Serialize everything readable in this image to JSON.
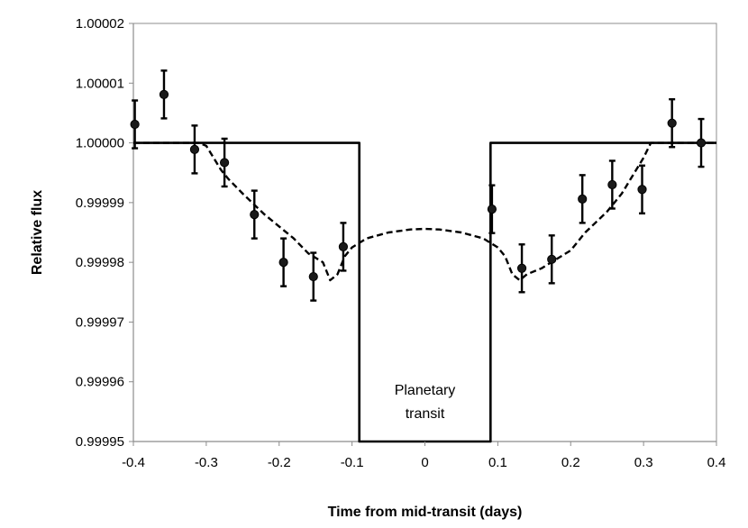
{
  "chart_data": {
    "type": "scatter",
    "title": "",
    "xlabel": "Time from mid-transit (days)",
    "ylabel": "Relative flux",
    "xlim": [
      -0.4,
      0.4
    ],
    "ylim": [
      0.99995,
      1.00002
    ],
    "x_ticks": [
      "-0.4",
      "-0.3",
      "-0.2",
      "-0.1",
      "0",
      "0.1",
      "0.2",
      "0.3",
      "0.4"
    ],
    "y_ticks": [
      "0.99995",
      "0.99996",
      "0.99997",
      "0.99998",
      "0.99999",
      "1.00000",
      "1.00001",
      "1.00002"
    ],
    "grid": false,
    "legend": "none",
    "annotation": {
      "text_line1": "Planetary",
      "text_line2": "transit",
      "x": 0,
      "y": 0.999956
    },
    "series": [
      {
        "type": "scatter",
        "style": "black filled circles with error bars",
        "x": [
          -0.398,
          -0.358,
          -0.316,
          -0.275,
          -0.234,
          -0.194,
          -0.153,
          -0.112,
          0.092,
          0.133,
          0.174,
          0.216,
          0.257,
          0.298,
          0.339,
          0.379
        ],
        "y": [
          1.0000031,
          1.0000081,
          0.9999989,
          0.9999967,
          0.999988,
          0.99998,
          0.9999776,
          0.9999826,
          0.9999889,
          0.999979,
          0.9999805,
          0.9999906,
          0.999993,
          0.9999922,
          1.0000033,
          1.0
        ],
        "err": [
          4e-06,
          4e-06,
          4e-06,
          4e-06,
          4e-06,
          4e-06,
          4e-06,
          4e-06,
          4e-06,
          4e-06,
          4e-06,
          4e-06,
          4e-06,
          4e-06,
          4e-06,
          4e-06
        ]
      },
      {
        "type": "line",
        "style": "dashed",
        "x": [
          -0.4,
          -0.31,
          -0.3,
          -0.29,
          -0.28,
          -0.27,
          -0.25,
          -0.22,
          -0.2,
          -0.18,
          -0.16,
          -0.14,
          -0.13,
          -0.12,
          -0.11,
          -0.1,
          -0.08,
          -0.05,
          -0.02,
          0,
          0.02,
          0.05,
          0.08,
          0.1,
          0.11,
          0.12,
          0.13,
          0.14,
          0.16,
          0.18,
          0.2,
          0.22,
          0.25,
          0.27,
          0.28,
          0.29,
          0.3,
          0.31,
          0.4
        ],
        "y": [
          1.0,
          1.0,
          0.9999995,
          0.9999975,
          0.9999955,
          0.999994,
          0.9999915,
          0.999988,
          0.999986,
          0.999984,
          0.9999815,
          0.99998,
          0.999977,
          0.999978,
          0.999981,
          0.9999825,
          0.999984,
          0.999985,
          0.9999855,
          0.9999856,
          0.9999855,
          0.999985,
          0.999984,
          0.9999825,
          0.999981,
          0.999978,
          0.999977,
          0.999978,
          0.999979,
          0.9999805,
          0.999982,
          0.999985,
          0.9999885,
          0.9999915,
          0.9999935,
          0.9999955,
          0.9999975,
          1.0,
          1.0
        ]
      },
      {
        "type": "line",
        "style": "solid",
        "x": [
          -0.4,
          -0.09,
          -0.09,
          -0.09,
          0.09,
          0.09,
          0.4
        ],
        "y": [
          1.0,
          1.0,
          0.99995,
          0.99995,
          0.99995,
          1.0,
          1.0
        ]
      }
    ]
  }
}
